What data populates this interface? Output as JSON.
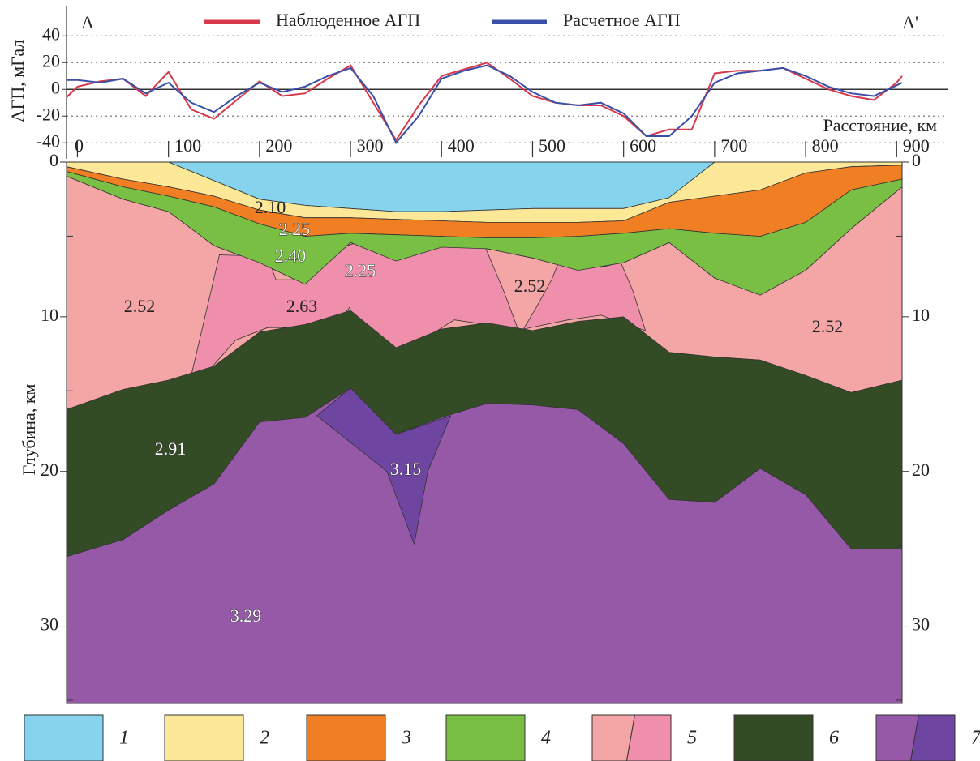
{
  "chart_data": [
    {
      "type": "line",
      "ylabel": "АГП, мГал",
      "xlabel": "Расстояние, км",
      "left_label": "A",
      "right_label": "A'",
      "legend": "top",
      "grid": true,
      "x": [
        -12,
        0,
        25,
        50,
        75,
        100,
        125,
        150,
        175,
        200,
        225,
        250,
        275,
        300,
        325,
        350,
        375,
        400,
        425,
        450,
        475,
        500,
        525,
        550,
        575,
        600,
        625,
        650,
        675,
        700,
        725,
        750,
        775,
        800,
        825,
        850,
        875,
        900,
        906
      ],
      "series": [
        {
          "name": "Наблюденное АГП",
          "color": "#d8394a",
          "values": [
            -6,
            2,
            6,
            8,
            -5,
            13,
            -15,
            -22,
            -8,
            6,
            -5,
            -3,
            8,
            18,
            -10,
            -38,
            -12,
            10,
            15,
            20,
            8,
            -5,
            -10,
            -12,
            -12,
            -20,
            -35,
            -30,
            -30,
            12,
            14,
            14,
            16,
            8,
            0,
            -5,
            -8,
            5,
            10
          ]
        },
        {
          "name": "Расчетное АГП",
          "color": "#3a4fa8",
          "values": [
            7,
            7,
            5,
            8,
            -3,
            5,
            -10,
            -17,
            -5,
            5,
            -2,
            2,
            10,
            16,
            -5,
            -40,
            -20,
            8,
            14,
            18,
            10,
            -2,
            -10,
            -12,
            -10,
            -18,
            -35,
            -35,
            -20,
            5,
            12,
            14,
            16,
            10,
            2,
            -3,
            -5,
            3,
            5
          ]
        }
      ],
      "xlim": [
        -12,
        906
      ],
      "xticks": [
        0,
        100,
        200,
        300,
        400,
        500,
        600,
        700,
        800,
        900
      ],
      "ylim": [
        -52,
        62
      ],
      "yticks": [
        -40,
        -20,
        0,
        20,
        40
      ]
    },
    {
      "type": "section",
      "ylabel": "Глубина, км",
      "x": [
        -12,
        50,
        100,
        150,
        200,
        250,
        300,
        350,
        400,
        450,
        500,
        550,
        600,
        650,
        700,
        750,
        800,
        850,
        906
      ],
      "xlim": [
        -12,
        906
      ],
      "ylim": [
        0,
        35
      ],
      "yticks": [
        0,
        10,
        20,
        30
      ],
      "minor_yticks": [
        5,
        15,
        25,
        35
      ],
      "layers": [
        {
          "label": "1",
          "colors": [
            "#86d3ee"
          ],
          "base": [
            0,
            0,
            0,
            1.2,
            2.4,
            2.8,
            3.0,
            3.2,
            3.2,
            3.1,
            3.0,
            3.0,
            3.0,
            2.3,
            0,
            0,
            0,
            0,
            0
          ]
        },
        {
          "label": "2",
          "colors": [
            "#fde898"
          ],
          "base": [
            0.3,
            1.1,
            1.6,
            2.2,
            3.1,
            3.6,
            3.6,
            3.7,
            3.8,
            3.9,
            3.9,
            3.9,
            3.8,
            2.6,
            2.2,
            1.8,
            0.7,
            0.3,
            0.2
          ]
        },
        {
          "label": "3",
          "colors": [
            "#f07f24"
          ],
          "base": [
            0.6,
            1.6,
            2.2,
            2.9,
            4.0,
            4.8,
            4.6,
            4.7,
            4.8,
            4.9,
            4.9,
            4.8,
            4.6,
            4.3,
            4.6,
            4.8,
            3.9,
            1.8,
            1.1
          ]
        },
        {
          "label": "4",
          "colors": [
            "#79bf43"
          ],
          "base": [
            0.9,
            2.4,
            3.2,
            5.4,
            6.5,
            7.9,
            5.2,
            6.4,
            5.5,
            5.6,
            6.2,
            7.0,
            6.5,
            5.2,
            7.5,
            8.6,
            7.0,
            4.3,
            1.6
          ]
        },
        {
          "label": "5",
          "colors": [
            "#f4a6a6",
            "#f08fab"
          ],
          "base": [
            16.0,
            14.7,
            14.1,
            13.2,
            11.0,
            10.5,
            9.6,
            12.0,
            10.8,
            10.4,
            10.9,
            10.3,
            10.0,
            12.3,
            12.6,
            12.8,
            13.8,
            14.9,
            14.1
          ],
          "inclusions": [
            [
              [
                156,
                6.0
              ],
              [
                209,
                6.1
              ],
              [
                218,
                7.6
              ],
              [
                254,
                7.6
              ],
              [
                281,
                5.7
              ],
              [
                307,
                5.2
              ],
              [
                361,
                6.0
              ],
              [
                397,
                5.2
              ],
              [
                448,
                5.5
              ],
              [
                468,
                8.3
              ],
              [
                484,
                10.8
              ],
              [
                414,
                10.2
              ],
              [
                379,
                11.5
              ],
              [
                352,
                12.2
              ],
              [
                307,
                10.7
              ],
              [
                299,
                9.4
              ],
              [
                281,
                10.7
              ],
              [
                209,
                10.7
              ],
              [
                174,
                11.5
              ],
              [
                147,
                13.3
              ],
              [
                125,
                13.8
              ]
            ],
            [
              [
                530,
                6.3
              ],
              [
                575,
                6.8
              ],
              [
                597,
                6.5
              ],
              [
                610,
                8.3
              ],
              [
                624,
                10.9
              ],
              [
                575,
                9.9
              ],
              [
                539,
                10.2
              ],
              [
                490,
                10.8
              ],
              [
                504,
                9.4
              ],
              [
                521,
                7.6
              ]
            ]
          ]
        },
        {
          "label": "6",
          "colors": [
            "#344c25"
          ],
          "base": [
            25.5,
            24.4,
            22.5,
            20.8,
            16.8,
            16.5,
            14.6,
            17.6,
            16.5,
            15.6,
            15.7,
            16.0,
            18.2,
            21.8,
            22.0,
            19.8,
            21.5,
            25.0,
            25.0
          ]
        },
        {
          "label": "7",
          "colors": [
            "#9559a8",
            "#6e45a0"
          ],
          "inclusions": [
            [
              [
                263,
                16.4
              ],
              [
                300,
                14.6
              ],
              [
                350,
                17.6
              ],
              [
                410,
                16.4
              ],
              [
                385,
                20.0
              ],
              [
                370,
                24.7
              ],
              [
                340,
                20.0
              ]
            ]
          ]
        }
      ],
      "density_labels": [
        "2.10",
        "2.25",
        "2.40",
        "2.25",
        "2.52",
        "2.63",
        "2.52",
        "2.52",
        "2.91",
        "3.15",
        "3.29"
      ]
    }
  ]
}
